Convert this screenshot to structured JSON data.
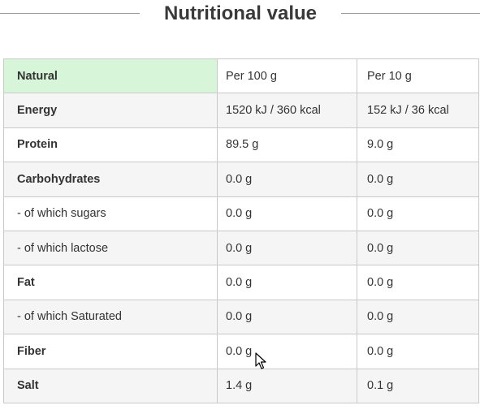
{
  "title": "Nutritional value",
  "table": {
    "header": [
      "Natural",
      "Per 100 g",
      "Per 10 g"
    ],
    "rows": [
      {
        "label": "Energy",
        "bold": true,
        "per100": "1520 kJ / 360 kcal",
        "per10": "152 kJ / 36 kcal"
      },
      {
        "label": "Protein",
        "bold": true,
        "per100": "89.5 g",
        "per10": "9.0 g"
      },
      {
        "label": "Carbohydrates",
        "bold": true,
        "per100": "0.0 g",
        "per10": "0.0 g"
      },
      {
        "label": "- of which sugars",
        "bold": false,
        "per100": "0.0 g",
        "per10": "0.0 g"
      },
      {
        "label": "- of which lactose",
        "bold": false,
        "per100": "0.0 g",
        "per10": "0.0 g"
      },
      {
        "label": "Fat",
        "bold": true,
        "per100": "0.0 g",
        "per10": "0.0 g"
      },
      {
        "label": "- of which Saturated",
        "bold": false,
        "per100": "0.0 g",
        "per10": "0.0 g"
      },
      {
        "label": "Fiber",
        "bold": true,
        "per100": "0.0 g",
        "per10": "0.0 g"
      },
      {
        "label": "Salt",
        "bold": true,
        "per100": "1.4 g",
        "per10": "0.1 g"
      }
    ]
  },
  "colors": {
    "header_highlight": "#d7f5d8",
    "row_stripe": "#f5f5f5",
    "border": "#c9c9c9"
  },
  "icons": {
    "cursor": "mouse-pointer-icon"
  }
}
